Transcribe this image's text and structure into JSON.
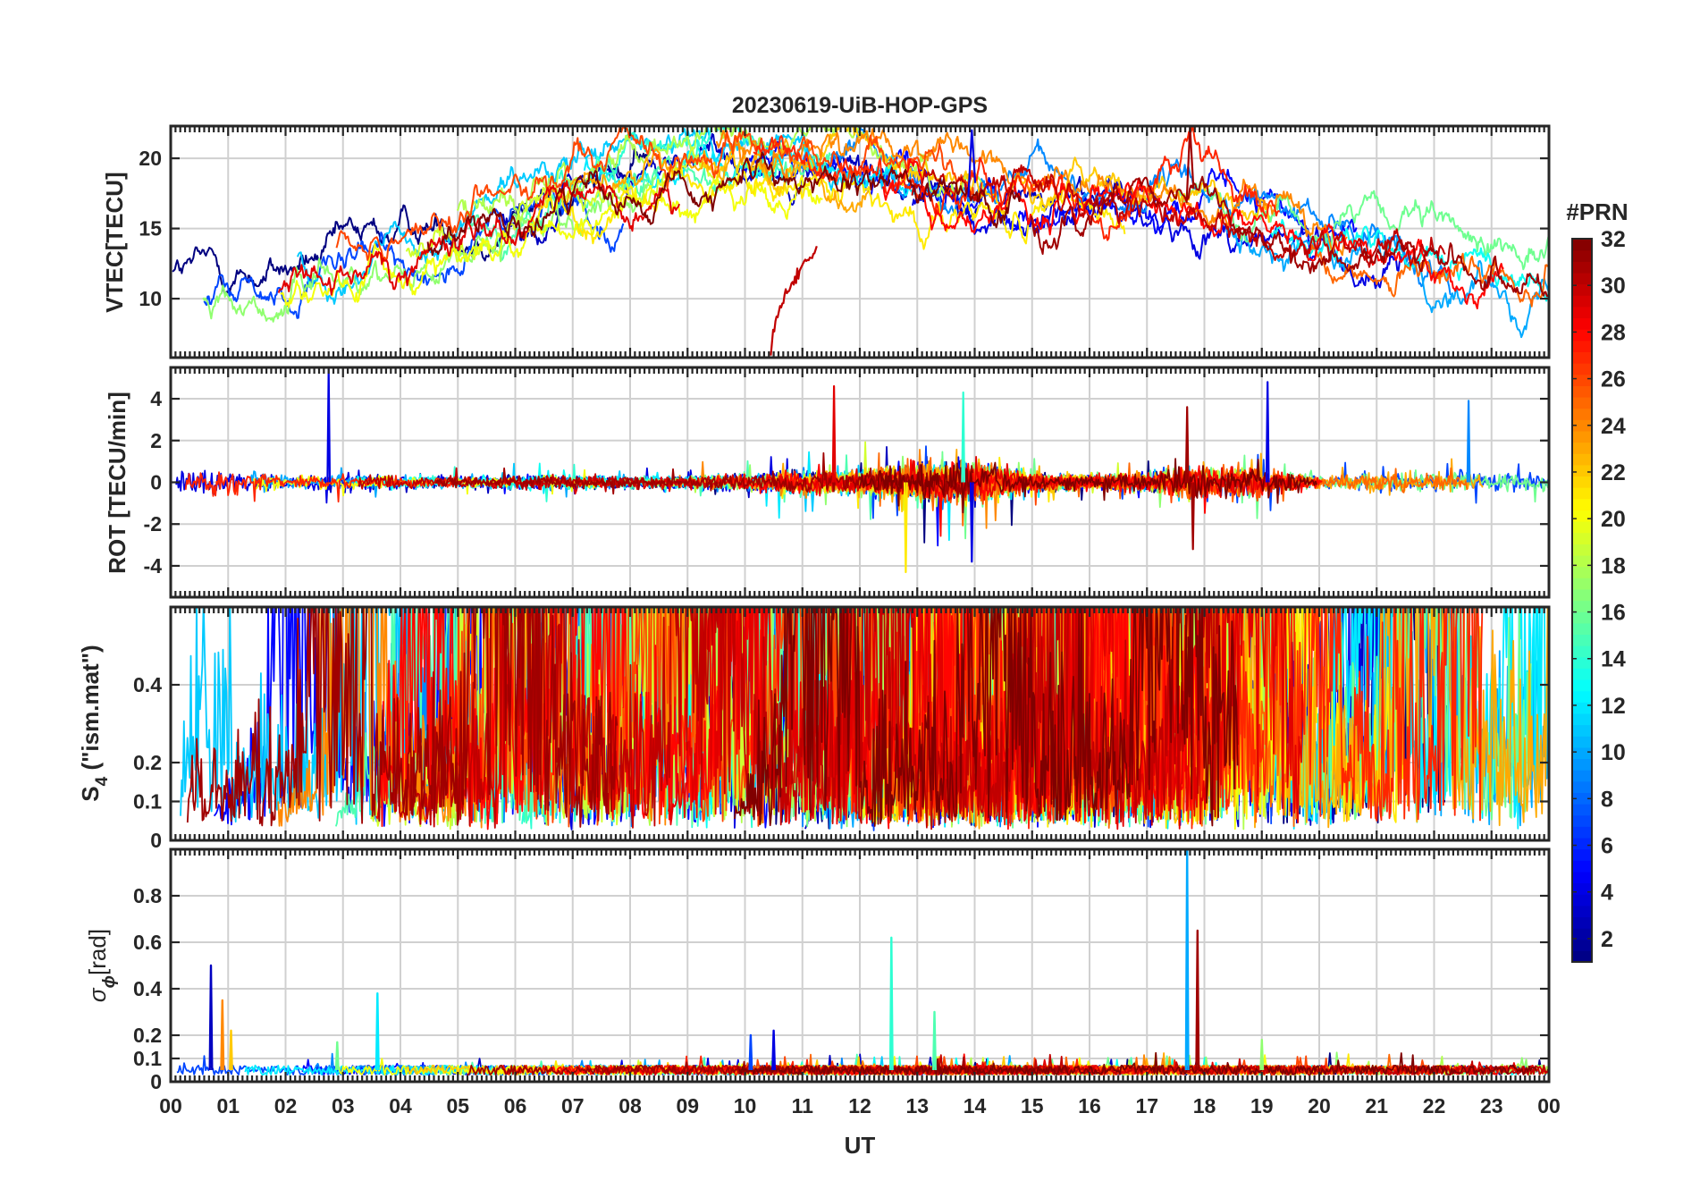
{
  "chart_data": {
    "type": "line",
    "title": "20230619-UiB-HOP-GPS",
    "xlabel": "UT",
    "x_tick_labels": [
      "00",
      "01",
      "02",
      "03",
      "04",
      "05",
      "06",
      "07",
      "08",
      "09",
      "10",
      "11",
      "12",
      "13",
      "14",
      "15",
      "16",
      "17",
      "18",
      "19",
      "20",
      "21",
      "22",
      "23",
      "00"
    ],
    "xlim": [
      0,
      24
    ],
    "grid": true,
    "panels": [
      {
        "id": "vtec",
        "ylabel": "VTEC[TECU]",
        "ylim": [
          5.8,
          22.3
        ],
        "yticks": [
          10,
          15,
          20
        ],
        "ytick_labels": [
          "10",
          "15",
          "20"
        ],
        "baseline_profile": {
          "x": [
            0,
            1,
            2,
            3,
            4,
            5,
            6,
            7,
            8,
            9,
            10,
            11,
            12,
            13,
            14,
            15,
            16,
            17,
            18,
            19,
            20,
            21,
            22,
            23,
            24
          ],
          "y": [
            11.5,
            11.0,
            11.5,
            12.5,
            13.8,
            15.0,
            16.3,
            17.5,
            18.5,
            19.3,
            19.8,
            19.7,
            19.0,
            18.0,
            17.2,
            16.8,
            16.8,
            16.9,
            16.8,
            15.8,
            14.6,
            13.5,
            12.6,
            12.2,
            12.3
          ]
        },
        "noise": 0.45,
        "notable": [
          {
            "prn": 30,
            "x_start": 10.45,
            "x_end": 11.25,
            "y_start": 6.0,
            "y_end": 13.5,
            "label": "rising track"
          },
          {
            "prn": 31,
            "x": 17.75,
            "y_peak": 22.2,
            "label": "spike"
          },
          {
            "prn": 4,
            "x": 13.95,
            "y_peak": 22.0,
            "label": "spike"
          }
        ]
      },
      {
        "id": "rot",
        "ylabel": "ROT [TECU/min]",
        "ylim": [
          -5.5,
          5.5
        ],
        "yticks": [
          -4,
          -2,
          0,
          2,
          4
        ],
        "ytick_labels": [
          "-4",
          "-2",
          "0",
          "2",
          "4"
        ],
        "activity_profile": {
          "x": [
            0,
            1,
            2,
            3,
            4,
            5,
            6,
            7,
            8,
            9,
            10,
            11,
            12,
            13,
            14,
            15,
            16,
            17,
            18,
            19,
            20,
            21,
            22,
            23,
            24
          ],
          "amplitude": [
            0.9,
            0.8,
            0.35,
            0.4,
            0.35,
            0.3,
            0.35,
            0.35,
            0.3,
            0.3,
            0.45,
            0.55,
            0.6,
            1.0,
            1.1,
            0.45,
            0.4,
            0.5,
            0.9,
            0.7,
            0.4,
            0.45,
            0.5,
            0.45,
            0.6
          ]
        },
        "spikes": [
          {
            "x": 2.75,
            "y": 5.4,
            "prn": 4
          },
          {
            "x": 11.55,
            "y": 4.6,
            "prn": 29
          },
          {
            "x": 13.8,
            "y": 4.3,
            "prn": 14
          },
          {
            "x": 17.7,
            "y": 3.6,
            "prn": 31
          },
          {
            "x": 19.1,
            "y": 4.8,
            "prn": 4
          },
          {
            "x": 22.6,
            "y": 3.9,
            "prn": 9
          },
          {
            "x": 12.8,
            "y": -4.3,
            "prn": 21
          },
          {
            "x": 13.95,
            "y": -3.8,
            "prn": 4
          },
          {
            "x": 17.8,
            "y": -3.2,
            "prn": 31
          }
        ]
      },
      {
        "id": "s4",
        "ylabel": "S",
        "ylabel_subscript": "4",
        "ylabel_suffix": " (\"ism.mat\")",
        "ylim": [
          0,
          0.6
        ],
        "yticks": [
          0,
          0.1,
          0.2,
          0.4
        ],
        "ytick_labels": [
          "0",
          "0.1",
          "0.2",
          "0.4"
        ],
        "activity_profile": {
          "x": [
            0,
            1,
            2,
            3,
            4,
            5,
            6,
            7,
            8,
            9,
            10,
            11,
            12,
            13,
            14,
            15,
            16,
            17,
            18,
            19,
            20,
            21,
            22,
            23,
            24
          ],
          "level": [
            0.32,
            0.18,
            0.28,
            0.22,
            0.3,
            0.25,
            0.4,
            0.38,
            0.22,
            0.4,
            0.42,
            0.33,
            0.3,
            0.28,
            0.22,
            0.28,
            0.32,
            0.26,
            0.4,
            0.45,
            0.28,
            0.3,
            0.42,
            0.38,
            0.3
          ]
        },
        "background_level": 0.05
      },
      {
        "id": "sigma_phi",
        "ylabel": "σ",
        "ylabel_subscript": "ϕ",
        "ylabel_suffix": "[rad]",
        "ylim": [
          0,
          1.0
        ],
        "yticks": [
          0,
          0.1,
          0.2,
          0.4,
          0.6,
          0.8
        ],
        "ytick_labels": [
          "0",
          "0.1",
          "0.2",
          "0.4",
          "0.6",
          "0.8"
        ],
        "background_level": 0.05,
        "spikes": [
          {
            "x": 0.7,
            "y": 0.5,
            "prn": 3
          },
          {
            "x": 0.9,
            "y": 0.35,
            "prn": 24
          },
          {
            "x": 1.05,
            "y": 0.22,
            "prn": 22
          },
          {
            "x": 2.9,
            "y": 0.17,
            "prn": 16
          },
          {
            "x": 3.6,
            "y": 0.38,
            "prn": 12
          },
          {
            "x": 10.1,
            "y": 0.2,
            "prn": 7
          },
          {
            "x": 10.5,
            "y": 0.22,
            "prn": 4
          },
          {
            "x": 12.55,
            "y": 0.62,
            "prn": 14
          },
          {
            "x": 13.3,
            "y": 0.3,
            "prn": 15
          },
          {
            "x": 17.7,
            "y": 1.0,
            "prn": 10
          },
          {
            "x": 17.88,
            "y": 0.65,
            "prn": 31
          },
          {
            "x": 19.0,
            "y": 0.18,
            "prn": 17
          }
        ]
      }
    ],
    "colorbar": {
      "label": "#PRN",
      "colormap": "jet",
      "range": [
        1,
        32
      ],
      "ticks": [
        2,
        4,
        6,
        8,
        10,
        12,
        14,
        16,
        18,
        20,
        22,
        24,
        26,
        28,
        30,
        32
      ],
      "tick_labels": [
        "2",
        "4",
        "6",
        "8",
        "10",
        "12",
        "14",
        "16",
        "18",
        "20",
        "22",
        "24",
        "26",
        "28",
        "30",
        "32"
      ]
    },
    "series_prns": [
      1,
      3,
      4,
      5,
      7,
      9,
      10,
      11,
      12,
      13,
      14,
      15,
      16,
      17,
      18,
      19,
      20,
      21,
      22,
      23,
      24,
      25,
      26,
      27,
      28,
      29,
      30,
      31,
      32
    ]
  }
}
